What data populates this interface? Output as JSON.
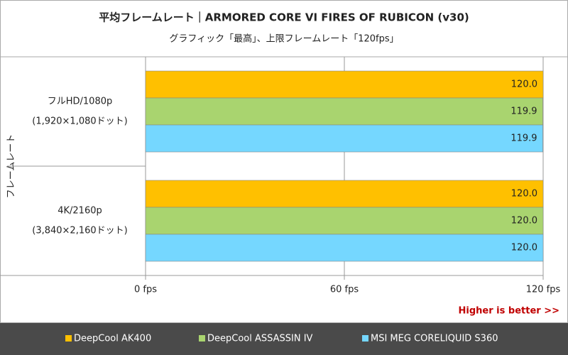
{
  "chart_data": {
    "type": "hbar",
    "title": "平均フレームレート｜ARMORED CORE VI FIRES OF RUBICON (v30)",
    "subtitle": "グラフィック「最高」、上限フレームレート「120fps」",
    "y_label": "フレームレート",
    "categories": [
      [
        "フルHD/1080p",
        "(1,920×1,080ドット)"
      ],
      [
        "4K/2160p",
        "(3,840×2,160ドット)"
      ]
    ],
    "series": [
      {
        "name": "DeepCool AK400",
        "color": "#ffc000",
        "values": [
          120.0,
          120.0
        ],
        "value_labels": [
          "120.0",
          "120.0"
        ]
      },
      {
        "name": "DeepCool ASSASSIN IV",
        "color": "#a9d46f",
        "values": [
          119.9,
          120.0
        ],
        "value_labels": [
          "119.9",
          "120.0"
        ]
      },
      {
        "name": "MSI MEG CORELIQUID S360",
        "color": "#75d7ff",
        "values": [
          119.9,
          120.0
        ],
        "value_labels": [
          "119.9",
          "120.0"
        ]
      }
    ],
    "xlim": [
      0,
      120
    ],
    "xticks": [
      {
        "value": 0,
        "label": "0 fps"
      },
      {
        "value": 60,
        "label": "60 fps"
      },
      {
        "value": 120,
        "label": "120 fps"
      }
    ],
    "annotation": "Higher is better >>"
  }
}
